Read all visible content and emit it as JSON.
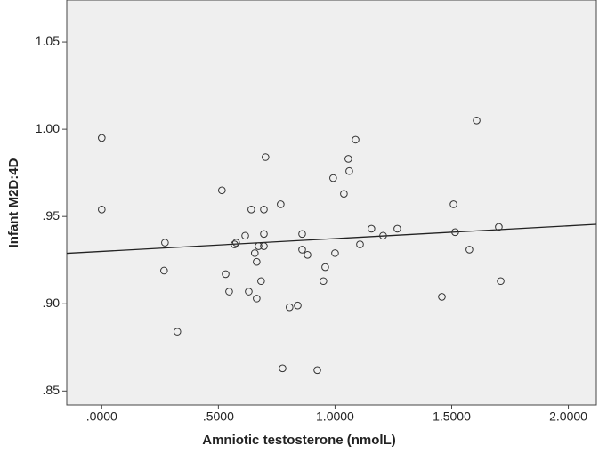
{
  "chart_data": {
    "type": "scatter",
    "x_label": "Amniotic testosterone (nmolL)",
    "y_label": "Infant M2D:4D",
    "xlim": [
      -0.15,
      2.12
    ],
    "ylim": [
      0.842,
      1.074
    ],
    "xticks": [
      {
        "value": 0,
        "label": ".0000"
      },
      {
        "value": 0.5,
        "label": ".5000"
      },
      {
        "value": 1,
        "label": "1.0000"
      },
      {
        "value": 1.5,
        "label": "1.5000"
      },
      {
        "value": 2,
        "label": "2.0000"
      }
    ],
    "yticks": [
      {
        "value": 0.85,
        "label": ".85"
      },
      {
        "value": 0.9,
        "label": ".90"
      },
      {
        "value": 0.95,
        "label": ".95"
      },
      {
        "value": 1,
        "label": "1.00"
      },
      1.05
    ],
    "color": "#333333",
    "background": "#efefef",
    "x": [
      0,
      0,
      0.271,
      0.267,
      0.324,
      0.515,
      0.531,
      0.546,
      0.569,
      0.576,
      0.615,
      0.641,
      0.63,
      0.656,
      0.664,
      0.664,
      0.672,
      0.683,
      0.695,
      0.695,
      0.695,
      0.702,
      0.767,
      0.775,
      0.805,
      0.84,
      0.859,
      0.859,
      0.882,
      0.924,
      0.95,
      0.958,
      0.992,
      1.038,
      1.057,
      1.061,
      1.088,
      1.0,
      1.107,
      1.156,
      1.206,
      1.267,
      1.458,
      1.508,
      1.515,
      1.576,
      1.607,
      1.702,
      1.71
    ],
    "y": [
      0.995,
      0.954,
      0.935,
      0.919,
      0.884,
      0.965,
      0.917,
      0.907,
      0.934,
      0.935,
      0.939,
      0.954,
      0.907,
      0.929,
      0.924,
      0.903,
      0.933,
      0.913,
      0.94,
      0.933,
      0.954,
      0.984,
      0.957,
      0.863,
      0.898,
      0.899,
      0.94,
      0.931,
      0.928,
      0.862,
      0.913,
      0.921,
      0.972,
      0.963,
      0.983,
      0.976,
      0.994,
      0.929,
      0.934,
      0.943,
      0.939,
      0.943,
      0.904,
      0.957,
      0.941,
      0.931,
      1.005,
      0.944,
      0.913
    ],
    "fit_line": {
      "x": [
        -0.15,
        2.12
      ],
      "y": [
        0.9289,
        0.9455
      ]
    }
  }
}
